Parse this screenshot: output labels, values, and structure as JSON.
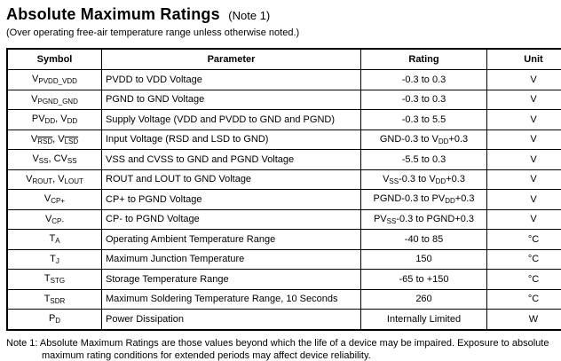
{
  "page": {
    "title": "Absolute Maximum Ratings",
    "title_note": "(Note 1)",
    "subtitle": "(Over operating free-air temperature range unless otherwise noted.)"
  },
  "table": {
    "headers": [
      "Symbol",
      "Parameter",
      "Rating",
      "Unit"
    ],
    "rows": [
      {
        "symbol": [
          [
            "t",
            "V"
          ],
          [
            "s",
            "PVDD_VDD"
          ]
        ],
        "parameter": "PVDD to VDD Voltage",
        "rating": [
          [
            "t",
            "-0.3 to 0.3"
          ]
        ],
        "unit": "V"
      },
      {
        "symbol": [
          [
            "t",
            "V"
          ],
          [
            "s",
            "PGND_GND"
          ]
        ],
        "parameter": "PGND to GND Voltage",
        "rating": [
          [
            "t",
            "-0.3 to 0.3"
          ]
        ],
        "unit": "V"
      },
      {
        "symbol": [
          [
            "t",
            "PV"
          ],
          [
            "s",
            "DD"
          ],
          [
            "t",
            ", V"
          ],
          [
            "s",
            "DD"
          ]
        ],
        "parameter": "Supply Voltage (VDD and PVDD to GND and PGND)",
        "rating": [
          [
            "t",
            "-0.3 to 5.5"
          ]
        ],
        "unit": "V"
      },
      {
        "symbol": [
          [
            "t",
            "V"
          ],
          [
            "o",
            "RSD"
          ],
          [
            "t",
            ", V"
          ],
          [
            "o",
            "LSD"
          ]
        ],
        "parameter": "Input Voltage (RSD and LSD to GND)",
        "rating": [
          [
            "t",
            "GND-0.3 to V"
          ],
          [
            "s",
            "DD"
          ],
          [
            "t",
            "+0.3"
          ]
        ],
        "unit": "V"
      },
      {
        "symbol": [
          [
            "t",
            "V"
          ],
          [
            "s",
            "SS"
          ],
          [
            "t",
            ", CV"
          ],
          [
            "s",
            "SS"
          ]
        ],
        "parameter": "VSS and CVSS to GND and PGND Voltage",
        "rating": [
          [
            "t",
            "-5.5 to 0.3"
          ]
        ],
        "unit": "V"
      },
      {
        "symbol": [
          [
            "t",
            "V"
          ],
          [
            "s",
            "ROUT"
          ],
          [
            "t",
            ", V"
          ],
          [
            "s",
            "LOUT"
          ]
        ],
        "parameter": "ROUT and LOUT to GND Voltage",
        "rating": [
          [
            "t",
            "V"
          ],
          [
            "s",
            "SS"
          ],
          [
            "t",
            "-0.3 to V"
          ],
          [
            "s",
            "DD"
          ],
          [
            "t",
            "+0.3"
          ]
        ],
        "unit": "V"
      },
      {
        "symbol": [
          [
            "t",
            "V"
          ],
          [
            "s",
            "CP+"
          ]
        ],
        "parameter": "CP+ to PGND Voltage",
        "rating": [
          [
            "t",
            "PGND-0.3 to PV"
          ],
          [
            "s",
            "DD"
          ],
          [
            "t",
            "+0.3"
          ]
        ],
        "unit": "V"
      },
      {
        "symbol": [
          [
            "t",
            "V"
          ],
          [
            "s",
            "CP-"
          ]
        ],
        "parameter": "CP- to PGND Voltage",
        "rating": [
          [
            "t",
            "PV"
          ],
          [
            "s",
            "SS"
          ],
          [
            "t",
            "-0.3 to PGND+0.3"
          ]
        ],
        "unit": "V"
      },
      {
        "symbol": [
          [
            "t",
            "T"
          ],
          [
            "s",
            "A"
          ]
        ],
        "parameter": "Operating Ambient Temperature Range",
        "rating": [
          [
            "t",
            "-40 to 85"
          ]
        ],
        "unit": "°C"
      },
      {
        "symbol": [
          [
            "t",
            "T"
          ],
          [
            "s",
            "J"
          ]
        ],
        "parameter": "Maximum Junction Temperature",
        "rating": [
          [
            "t",
            "150"
          ]
        ],
        "unit": "°C"
      },
      {
        "symbol": [
          [
            "t",
            "T"
          ],
          [
            "s",
            "STG"
          ]
        ],
        "parameter": "Storage Temperature Range",
        "rating": [
          [
            "t",
            "-65 to +150"
          ]
        ],
        "unit": "°C"
      },
      {
        "symbol": [
          [
            "t",
            "T"
          ],
          [
            "s",
            "SDR"
          ]
        ],
        "parameter": "Maximum Soldering Temperature Range, 10 Seconds",
        "rating": [
          [
            "t",
            "260"
          ]
        ],
        "unit": "°C"
      },
      {
        "symbol": [
          [
            "t",
            "P"
          ],
          [
            "s",
            "D"
          ]
        ],
        "parameter": "Power Dissipation",
        "rating": [
          [
            "t",
            "Internally Limited"
          ]
        ],
        "unit": "W"
      }
    ]
  },
  "note": {
    "text": "Note 1: Absolute Maximum Ratings are those values beyond which the life of a device may be impaired. Exposure to absolute maximum rating conditions for extended periods may affect device reliability."
  }
}
